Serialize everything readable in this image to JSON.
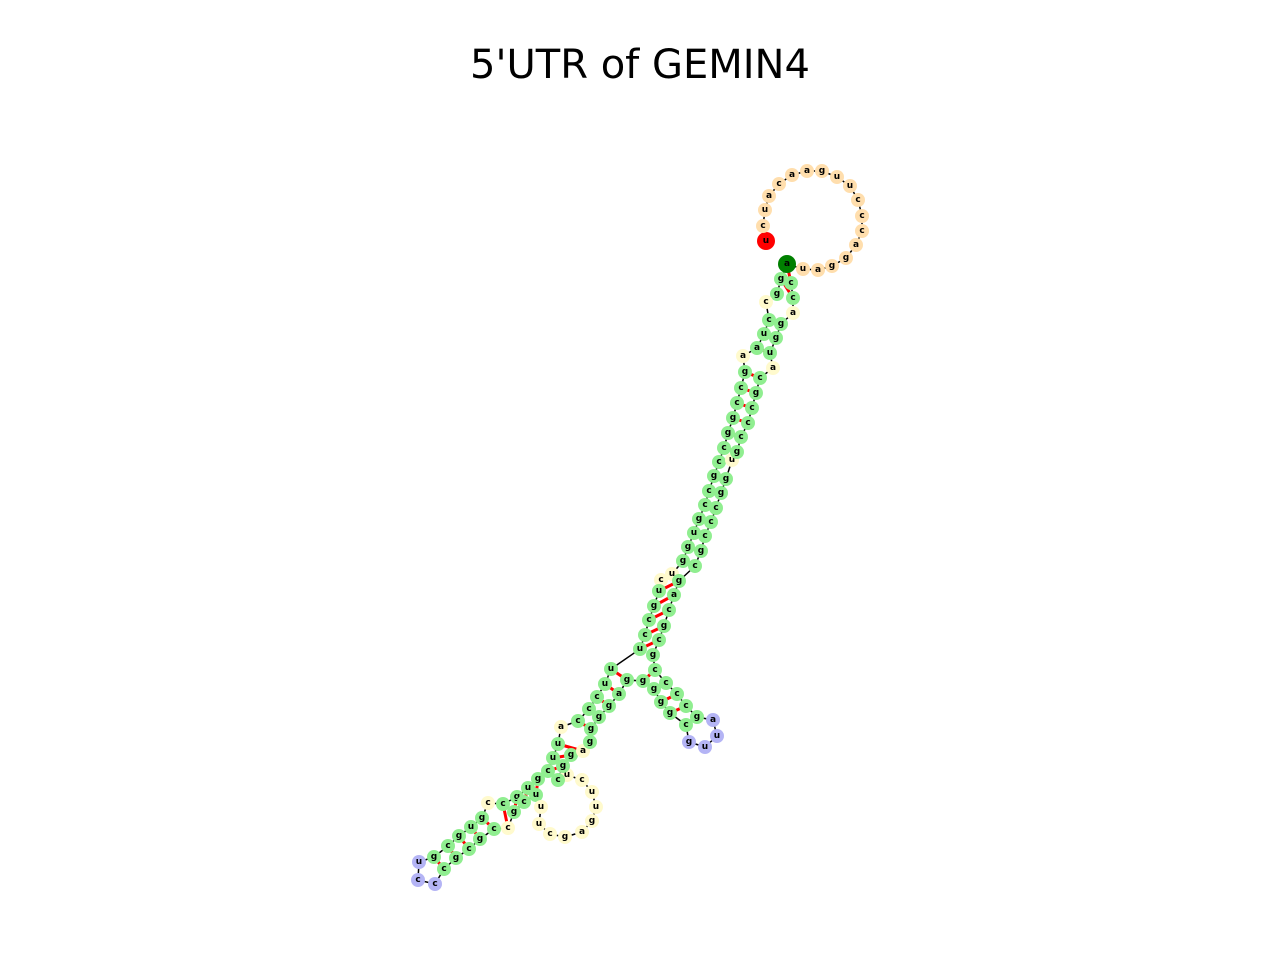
{
  "title": "5'UTR of GEMIN4",
  "colors": {
    "stem": "#90ee90",
    "interior_loop": "#fffacd",
    "hairpin_loop": "#b4b4f5",
    "unpaired_end": "#ffdead",
    "start": "#008000",
    "end": "#ff0000",
    "pair_line": "#ff0000",
    "backbone": "#000000"
  },
  "structure": {
    "tail_5prime": "uauccacaguucccagga",
    "hairpin_loops": [
      "ccu",
      "auug"
    ],
    "interior_loop_bottom": "cuuugagcu"
  }
}
